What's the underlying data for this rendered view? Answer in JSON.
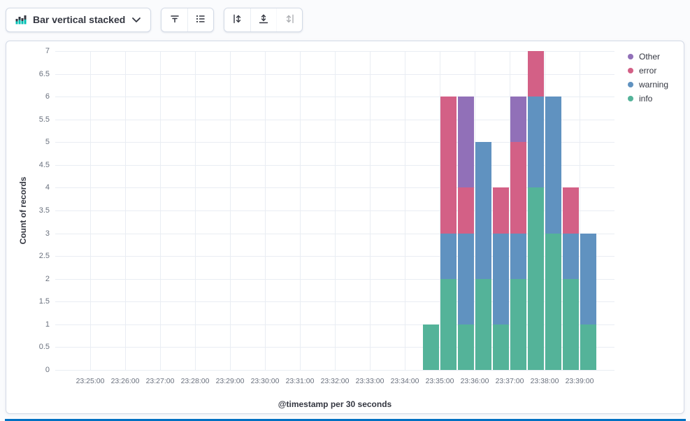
{
  "colors": {
    "accent": "#0071C2",
    "panel_border": "#D3DAE6",
    "text": "#343741",
    "text_subdued": "#69707D",
    "gridline": "#E9EDF3"
  },
  "toolbar": {
    "chart_type_label": "Bar vertical stacked",
    "display_group": [
      "visual-options",
      "legend"
    ],
    "axes_group": [
      "left-axis",
      "bottom-axis",
      "right-axis"
    ],
    "disabled_buttons": [
      "right-axis"
    ]
  },
  "chart_data": {
    "type": "bar",
    "stacked": true,
    "title": "",
    "xlabel": "@timestamp per 30 seconds",
    "ylabel": "Count of records",
    "ylim": [
      0,
      7
    ],
    "y_tick_step": 0.5,
    "x_domain": [
      "23:24:00",
      "23:40:00"
    ],
    "bucket_seconds": 30,
    "x_ticks": [
      "23:25:00",
      "23:26:00",
      "23:27:00",
      "23:28:00",
      "23:29:00",
      "23:30:00",
      "23:31:00",
      "23:32:00",
      "23:33:00",
      "23:34:00",
      "23:35:00",
      "23:36:00",
      "23:37:00",
      "23:38:00",
      "23:39:00"
    ],
    "categories": [
      "23:34:30",
      "23:35:00",
      "23:35:30",
      "23:36:00",
      "23:36:30",
      "23:37:00",
      "23:37:30",
      "23:38:00",
      "23:38:30",
      "23:39:00"
    ],
    "series": [
      {
        "name": "info",
        "color": "#54B399",
        "values": [
          1,
          2,
          1,
          2,
          1,
          2,
          4,
          3,
          2,
          1
        ]
      },
      {
        "name": "warning",
        "color": "#6092C0",
        "values": [
          0,
          1,
          2,
          3,
          2,
          1,
          2,
          3,
          1,
          2
        ]
      },
      {
        "name": "error",
        "color": "#D36086",
        "values": [
          0,
          3,
          1,
          0,
          1,
          2,
          1,
          0,
          1,
          0
        ]
      },
      {
        "name": "Other",
        "color": "#9170B8",
        "values": [
          0,
          0,
          2,
          0,
          0,
          1,
          0,
          0,
          0,
          0
        ]
      }
    ],
    "totals": [
      1,
      6,
      6,
      5,
      4,
      6,
      7,
      6,
      4,
      3
    ],
    "legend": [
      "Other",
      "error",
      "warning",
      "info"
    ],
    "legend_position": "top-right",
    "grid": true
  }
}
